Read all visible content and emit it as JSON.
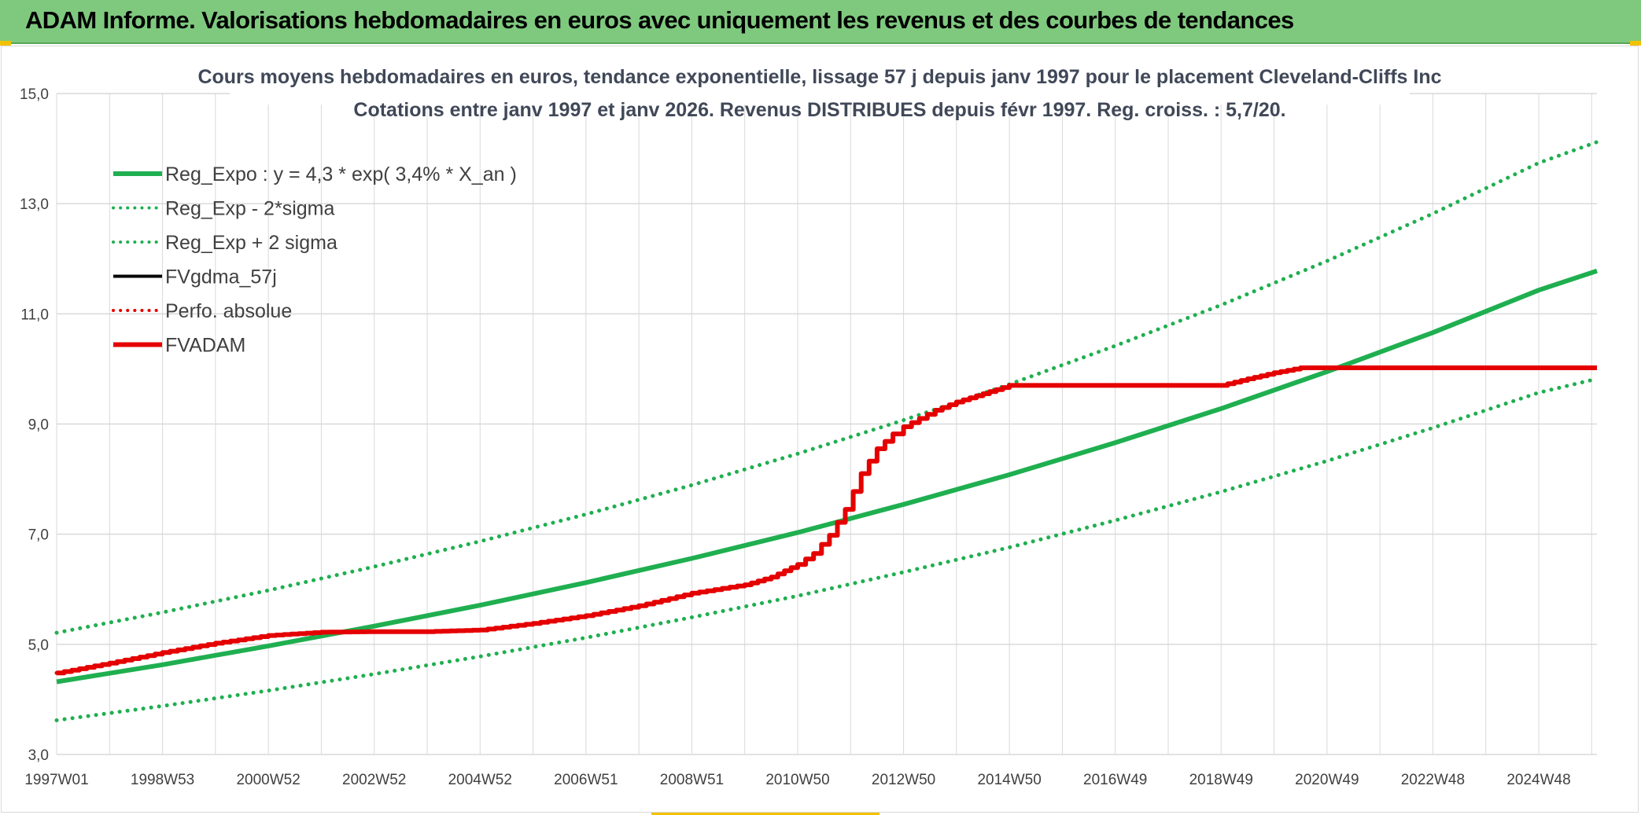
{
  "header": {
    "title": "ADAM Informe. Valorisations hebdomadaires en euros avec uniquement les revenus et des courbes de tendances"
  },
  "colors": {
    "header_bg": "#7fc97f",
    "green": "#1faf50",
    "red": "#e50000",
    "black": "#000000",
    "grid": "#d9d9d9"
  },
  "chart_data": {
    "type": "line",
    "title_line1": "Cours moyens hebdomadaires en euros, tendance exponentielle, lissage 57 j depuis janv 1997 pour le placement Cleveland-Cliffs Inc",
    "title_line2": "Cotations entre janv 1997 et janv 2026. Revenus DISTRIBUES depuis févr 1997. Reg. croiss. : 5,7/20.",
    "xlabel": "",
    "ylabel": "",
    "ylim": [
      3.0,
      15.0
    ],
    "xlim": [
      1997.0,
      2026.1
    ],
    "y_ticks": [
      "3,0",
      "5,0",
      "7,0",
      "9,0",
      "11,0",
      "13,0",
      "15,0"
    ],
    "x_ticks": [
      {
        "label": "1997W01",
        "x": 1997.0
      },
      {
        "label": "1998W53",
        "x": 1999.0
      },
      {
        "label": "2000W52",
        "x": 2001.0
      },
      {
        "label": "2002W52",
        "x": 2003.0
      },
      {
        "label": "2004W52",
        "x": 2005.0
      },
      {
        "label": "2006W51",
        "x": 2007.0
      },
      {
        "label": "2008W51",
        "x": 2009.0
      },
      {
        "label": "2010W50",
        "x": 2011.0
      },
      {
        "label": "2012W50",
        "x": 2013.0
      },
      {
        "label": "2014W50",
        "x": 2015.0
      },
      {
        "label": "2016W49",
        "x": 2017.0
      },
      {
        "label": "2018W49",
        "x": 2019.0
      },
      {
        "label": "2020W49",
        "x": 2021.0
      },
      {
        "label": "2022W48",
        "x": 2023.0
      },
      {
        "label": "2024W48",
        "x": 2025.0
      }
    ],
    "legend": [
      {
        "label": "Reg_Expo : y = 4,3 * exp( 3,4% *  X_an )",
        "color": "#1faf50",
        "style": "solid"
      },
      {
        "label": "Reg_Exp - 2*sigma",
        "color": "#1faf50",
        "style": "dotted"
      },
      {
        "label": "Reg_Exp + 2 sigma",
        "color": "#1faf50",
        "style": "dotted"
      },
      {
        "label": "FVgdma_57j",
        "color": "#000000",
        "style": "solid"
      },
      {
        "label": "Perfo. absolue",
        "color": "#e50000",
        "style": "dotted"
      },
      {
        "label": "FVADAM",
        "color": "#e50000",
        "style": "solid"
      }
    ],
    "series": [
      {
        "name": "Reg_Expo : y = 4,3 * exp( 3,4% *  X_an )",
        "x": [
          1997,
          1999,
          2001,
          2003,
          2005,
          2007,
          2009,
          2011,
          2013,
          2015,
          2017,
          2019,
          2021,
          2023,
          2025,
          2026.1
        ],
        "values": [
          4.32,
          4.63,
          4.97,
          5.33,
          5.71,
          6.12,
          6.56,
          7.03,
          7.54,
          8.08,
          8.66,
          9.28,
          9.95,
          10.66,
          11.43,
          11.78
        ]
      },
      {
        "name": "Reg_Exp - 2*sigma",
        "x": [
          1997,
          1999,
          2001,
          2003,
          2005,
          2007,
          2009,
          2011,
          2013,
          2015,
          2017,
          2019,
          2021,
          2023,
          2025,
          2026.1
        ],
        "values": [
          3.62,
          3.88,
          4.16,
          4.46,
          4.78,
          5.12,
          5.49,
          5.88,
          6.31,
          6.76,
          7.25,
          7.77,
          8.33,
          8.93,
          9.57,
          9.82
        ]
      },
      {
        "name": "Reg_Exp + 2 sigma",
        "x": [
          1997,
          1999,
          2001,
          2003,
          2005,
          2007,
          2009,
          2011,
          2013,
          2015,
          2017,
          2019,
          2021,
          2023,
          2025,
          2026.1
        ],
        "values": [
          5.21,
          5.58,
          5.98,
          6.41,
          6.87,
          7.36,
          7.89,
          8.46,
          9.07,
          9.72,
          10.42,
          11.16,
          11.96,
          12.82,
          13.74,
          14.12
        ]
      },
      {
        "name": "FVgdma_57j",
        "x": [
          1997.0,
          1998.0,
          1999.0,
          2000.0,
          2001.0,
          2002.0,
          2003.0,
          2004.0,
          2005.0,
          2006.0,
          2007.0,
          2008.0,
          2009.0,
          2010.0,
          2010.5,
          2011.0,
          2011.3,
          2011.6,
          2011.9,
          2012.2,
          2012.5,
          2012.8,
          2013.0,
          2013.3,
          2013.6,
          2014.0,
          2014.5,
          2015.0,
          2016.0,
          2017.0,
          2018.0,
          2019.0,
          2019.5,
          2020.0,
          2020.5,
          2021.0,
          2022.0,
          2023.0,
          2024.0,
          2025.0,
          2026.1
        ],
        "values": [
          4.48,
          4.66,
          4.85,
          5.02,
          5.16,
          5.22,
          5.23,
          5.23,
          5.26,
          5.38,
          5.52,
          5.7,
          5.93,
          6.08,
          6.22,
          6.45,
          6.65,
          6.98,
          7.45,
          8.1,
          8.55,
          8.82,
          8.95,
          9.1,
          9.25,
          9.4,
          9.55,
          9.7,
          9.7,
          9.7,
          9.7,
          9.7,
          9.82,
          9.93,
          10.02,
          10.02,
          10.02,
          10.02,
          10.02,
          10.02,
          10.02
        ]
      },
      {
        "name": "Perfo. absolue",
        "x": [
          1997.0,
          1998.0,
          1999.0,
          2000.0,
          2001.0,
          2002.0,
          2003.0,
          2004.0,
          2005.0,
          2006.0,
          2007.0,
          2008.0,
          2009.0,
          2010.0,
          2010.5,
          2011.0,
          2011.3,
          2011.6,
          2011.9,
          2012.2,
          2012.5,
          2012.8,
          2013.0,
          2013.3,
          2013.6,
          2014.0,
          2014.5,
          2015.0,
          2016.0,
          2017.0,
          2018.0,
          2019.0,
          2019.5,
          2020.0,
          2020.5,
          2021.0,
          2022.0,
          2023.0,
          2024.0,
          2025.0,
          2026.1
        ],
        "values": [
          4.48,
          4.66,
          4.85,
          5.02,
          5.16,
          5.22,
          5.23,
          5.23,
          5.26,
          5.38,
          5.52,
          5.7,
          5.93,
          6.08,
          6.22,
          6.45,
          6.65,
          6.98,
          7.45,
          8.1,
          8.55,
          8.82,
          8.95,
          9.1,
          9.25,
          9.4,
          9.55,
          9.7,
          9.7,
          9.7,
          9.7,
          9.7,
          9.82,
          9.93,
          10.02,
          10.02,
          10.02,
          10.02,
          10.02,
          10.02,
          10.02
        ]
      },
      {
        "name": "FVADAM",
        "x": [
          1997.0,
          1998.0,
          1999.0,
          2000.0,
          2001.0,
          2002.0,
          2003.0,
          2004.0,
          2005.0,
          2006.0,
          2007.0,
          2008.0,
          2009.0,
          2010.0,
          2010.5,
          2011.0,
          2011.3,
          2011.6,
          2011.9,
          2012.2,
          2012.5,
          2012.8,
          2013.0,
          2013.3,
          2013.6,
          2014.0,
          2014.5,
          2015.0,
          2016.0,
          2017.0,
          2018.0,
          2019.0,
          2019.5,
          2020.0,
          2020.5,
          2021.0,
          2022.0,
          2023.0,
          2024.0,
          2025.0,
          2026.1
        ],
        "values": [
          4.48,
          4.66,
          4.85,
          5.02,
          5.16,
          5.22,
          5.23,
          5.23,
          5.26,
          5.38,
          5.52,
          5.7,
          5.93,
          6.08,
          6.22,
          6.45,
          6.65,
          6.98,
          7.45,
          8.1,
          8.55,
          8.82,
          8.95,
          9.1,
          9.25,
          9.4,
          9.55,
          9.7,
          9.7,
          9.7,
          9.7,
          9.7,
          9.82,
          9.93,
          10.02,
          10.02,
          10.02,
          10.02,
          10.02,
          10.02,
          10.02
        ]
      }
    ]
  }
}
